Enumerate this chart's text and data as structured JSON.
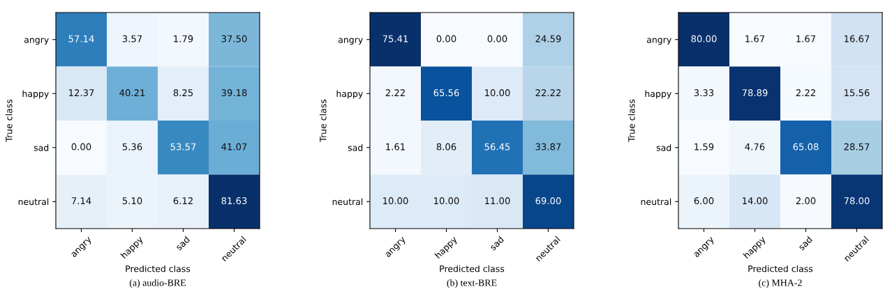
{
  "chart_data": [
    {
      "type": "heatmap",
      "title": "(a) audio-BRE",
      "xlabel": "Predicted class",
      "ylabel": "True class",
      "categories": [
        "angry",
        "happy",
        "sad",
        "neutral"
      ],
      "y_categories": [
        "angry",
        "happy",
        "sad",
        "neutral"
      ],
      "cells": [
        [
          57.14,
          3.57,
          1.79,
          37.5
        ],
        [
          12.37,
          40.21,
          8.25,
          39.18
        ],
        [
          0.0,
          5.36,
          53.57,
          41.07
        ],
        [
          7.14,
          5.1,
          6.12,
          81.63
        ]
      ],
      "cell_labels": [
        [
          "57.14",
          "3.57",
          "1.79",
          "37.50"
        ],
        [
          "12.37",
          "40.21",
          "8.25",
          "39.18"
        ],
        [
          "0.00",
          "5.36",
          "53.57",
          "41.07"
        ],
        [
          "7.14",
          "5.10",
          "6.12",
          "81.63"
        ]
      ]
    },
    {
      "type": "heatmap",
      "title": "(b) text-BRE",
      "xlabel": "Predicted class",
      "ylabel": "True class",
      "categories": [
        "angry",
        "happy",
        "sad",
        "neutral"
      ],
      "y_categories": [
        "angry",
        "happy",
        "sad",
        "neutral"
      ],
      "cells": [
        [
          75.41,
          0.0,
          0.0,
          24.59
        ],
        [
          2.22,
          65.56,
          10.0,
          22.22
        ],
        [
          1.61,
          8.06,
          56.45,
          33.87
        ],
        [
          10.0,
          10.0,
          11.0,
          69.0
        ]
      ],
      "cell_labels": [
        [
          "75.41",
          "0.00",
          "0.00",
          "24.59"
        ],
        [
          "2.22",
          "65.56",
          "10.00",
          "22.22"
        ],
        [
          "1.61",
          "8.06",
          "56.45",
          "33.87"
        ],
        [
          "10.00",
          "10.00",
          "11.00",
          "69.00"
        ]
      ]
    },
    {
      "type": "heatmap",
      "title": "(c) MHA-2",
      "xlabel": "Predicted class",
      "ylabel": "True class",
      "categories": [
        "angry",
        "happy",
        "sad",
        "neutral"
      ],
      "y_categories": [
        "angry",
        "happy",
        "sad",
        "neutral"
      ],
      "cells": [
        [
          80.0,
          1.67,
          1.67,
          16.67
        ],
        [
          3.33,
          78.89,
          2.22,
          15.56
        ],
        [
          1.59,
          4.76,
          65.08,
          28.57
        ],
        [
          6.0,
          14.0,
          2.0,
          78.0
        ]
      ],
      "cell_labels": [
        [
          "80.00",
          "1.67",
          "1.67",
          "16.67"
        ],
        [
          "3.33",
          "78.89",
          "2.22",
          "15.56"
        ],
        [
          "1.59",
          "4.76",
          "65.08",
          "28.57"
        ],
        [
          "6.00",
          "14.00",
          "2.00",
          "78.00"
        ]
      ]
    }
  ]
}
